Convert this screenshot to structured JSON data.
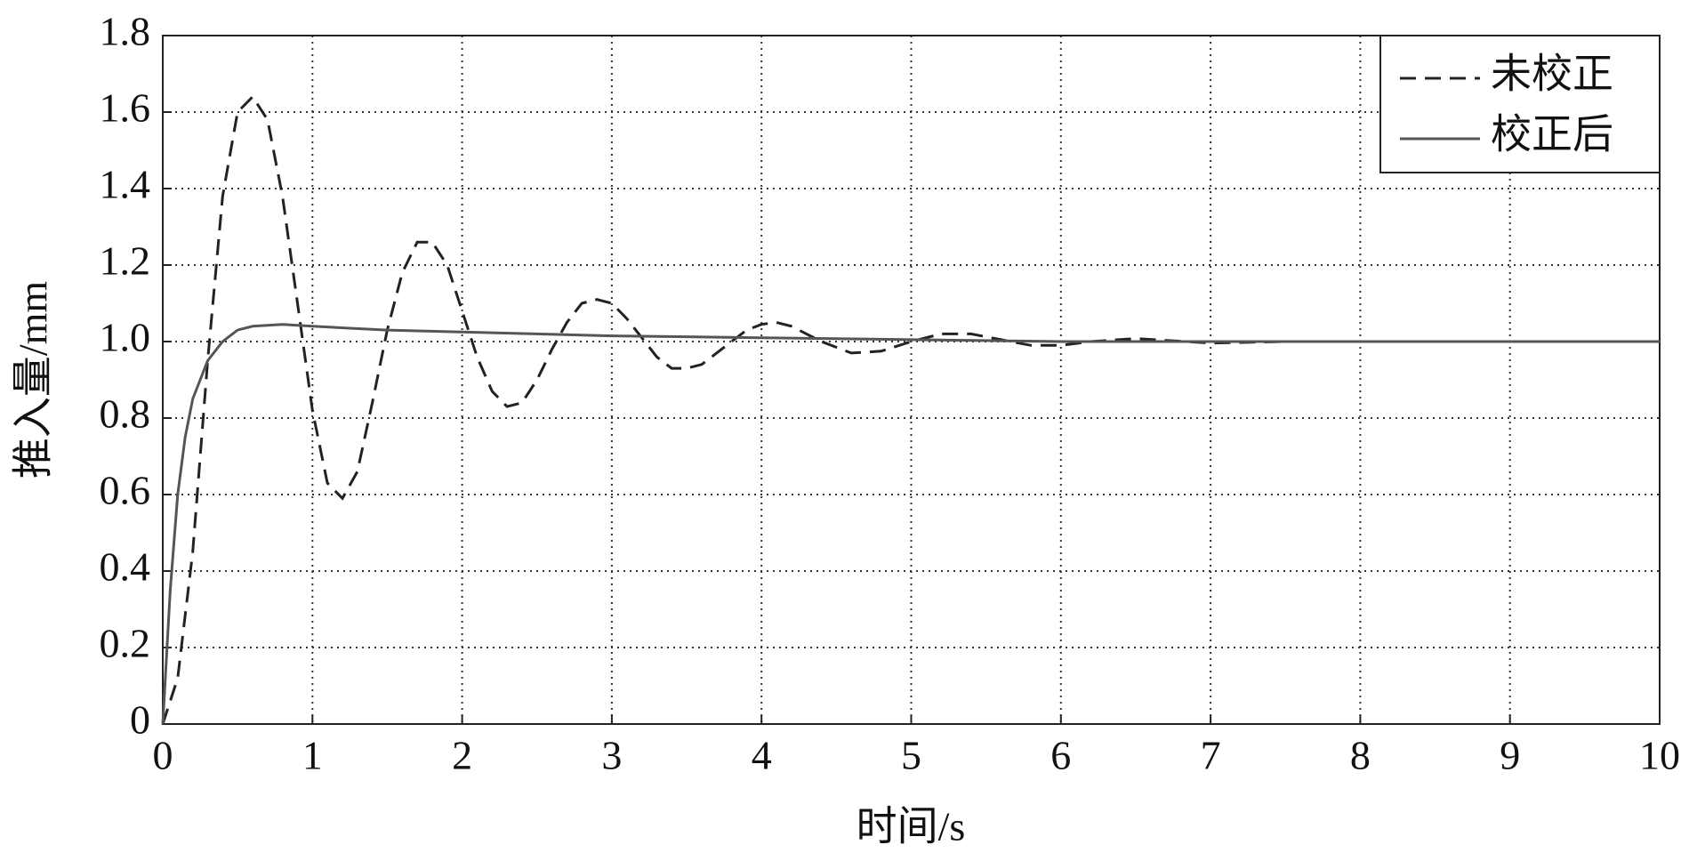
{
  "chart_data": {
    "type": "line",
    "xlabel": "时间/s",
    "ylabel": "推入量/mm",
    "xlim": [
      0,
      10
    ],
    "ylim": [
      0,
      1.8
    ],
    "xticks": [
      0,
      1,
      2,
      3,
      4,
      5,
      6,
      7,
      8,
      9,
      10
    ],
    "yticks": [
      0,
      0.2,
      0.4,
      0.6,
      0.8,
      {
        "value": 1,
        "label": "1.0"
      },
      1.2,
      1.4,
      1.6,
      1.8
    ],
    "grid": true,
    "legend": "upper right",
    "series": [
      {
        "name": "未校正",
        "color": "#222222",
        "line_style": "dashed",
        "x": [
          0,
          0.1,
          0.2,
          0.3,
          0.4,
          0.5,
          0.6,
          0.7,
          0.8,
          0.9,
          1.0,
          1.1,
          1.2,
          1.3,
          1.4,
          1.5,
          1.6,
          1.7,
          1.8,
          1.9,
          2.0,
          2.1,
          2.2,
          2.3,
          2.4,
          2.5,
          2.6,
          2.7,
          2.8,
          2.9,
          3.0,
          3.1,
          3.2,
          3.3,
          3.4,
          3.5,
          3.6,
          3.7,
          3.8,
          3.9,
          4.0,
          4.1,
          4.2,
          4.4,
          4.6,
          4.8,
          5.0,
          5.2,
          5.4,
          5.6,
          5.8,
          6.0,
          6.2,
          6.5,
          7.0,
          7.5,
          8,
          10
        ],
        "values": [
          0,
          0.12,
          0.45,
          0.95,
          1.38,
          1.6,
          1.64,
          1.58,
          1.38,
          1.1,
          0.82,
          0.63,
          0.59,
          0.66,
          0.84,
          1.03,
          1.18,
          1.26,
          1.26,
          1.2,
          1.08,
          0.96,
          0.87,
          0.83,
          0.84,
          0.9,
          0.98,
          1.05,
          1.1,
          1.11,
          1.1,
          1.06,
          1.01,
          0.96,
          0.93,
          0.93,
          0.94,
          0.97,
          1.0,
          1.03,
          1.045,
          1.05,
          1.04,
          1.0,
          0.97,
          0.975,
          1.0,
          1.02,
          1.02,
          1.005,
          0.99,
          0.99,
          1.0,
          1.008,
          0.996,
          1.0,
          1.0,
          1.0
        ]
      },
      {
        "name": "校正后",
        "color": "#555555",
        "line_style": "solid",
        "x": [
          0,
          0.05,
          0.1,
          0.15,
          0.2,
          0.3,
          0.4,
          0.5,
          0.6,
          0.8,
          1.0,
          1.5,
          2,
          3,
          4,
          5,
          6,
          10
        ],
        "values": [
          0,
          0.35,
          0.6,
          0.75,
          0.85,
          0.95,
          1.0,
          1.03,
          1.04,
          1.045,
          1.04,
          1.03,
          1.025,
          1.015,
          1.01,
          1.005,
          1.0,
          1.0
        ]
      }
    ]
  }
}
